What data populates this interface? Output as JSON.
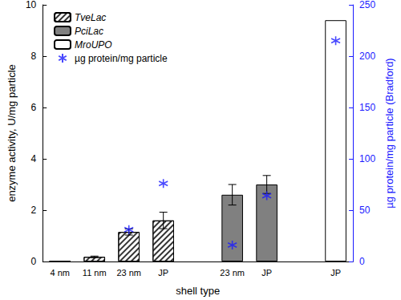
{
  "chart_data": {
    "type": "bar",
    "x_label": "shell type",
    "y_label": "enzyme activity, U/mg particle",
    "y2_label": "µg protein/mg particle (Bradford)",
    "categories": [
      "4 nm",
      "11 nm",
      "23 nm",
      "JP",
      null,
      "23 nm",
      "JP",
      null,
      "JP"
    ],
    "ylim": [
      0,
      10
    ],
    "yticks": [
      0,
      2,
      4,
      6,
      8,
      10
    ],
    "y2lim": [
      0,
      250
    ],
    "y2ticks": [
      0,
      50,
      100,
      150,
      200,
      250
    ],
    "legend": "upper left",
    "series": [
      {
        "name": "TveLac",
        "type": "bar",
        "color": "#ffffff",
        "values": [
          0.02,
          0.18,
          1.15,
          1.6,
          null,
          null,
          null,
          null,
          null
        ],
        "errors": [
          null,
          0.03,
          0.12,
          0.32,
          null,
          null,
          null,
          null,
          null
        ]
      },
      {
        "name": "PciLac",
        "type": "bar",
        "color": "#808080",
        "values": [
          null,
          null,
          null,
          null,
          null,
          2.6,
          3.0,
          null,
          null
        ],
        "errors": [
          null,
          null,
          null,
          null,
          null,
          0.4,
          0.35,
          null,
          null
        ]
      },
      {
        "name": "MroUPO",
        "type": "bar",
        "color": "#ffffff",
        "values": [
          null,
          null,
          null,
          null,
          null,
          null,
          null,
          null,
          9.4
        ],
        "errors": [
          null,
          null,
          null,
          null,
          null,
          null,
          null,
          null,
          null
        ]
      },
      {
        "name": "µg protein/mg particle",
        "type": "scatter",
        "axis": "y2",
        "color": "#1a1aff",
        "marker": "asterisk",
        "values": [
          null,
          null,
          31,
          76,
          null,
          16,
          64,
          null,
          215
        ]
      }
    ]
  }
}
